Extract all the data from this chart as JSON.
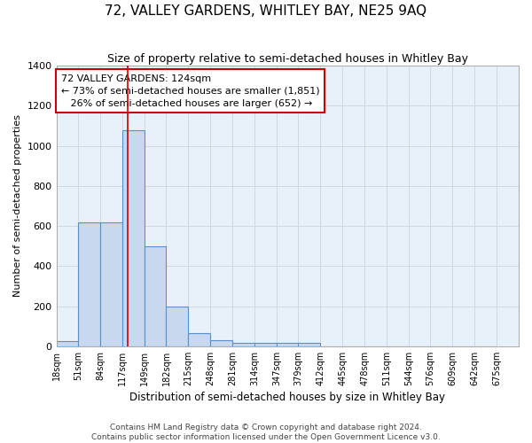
{
  "title": "72, VALLEY GARDENS, WHITLEY BAY, NE25 9AQ",
  "subtitle": "Size of property relative to semi-detached houses in Whitley Bay",
  "xlabel": "Distribution of semi-detached houses by size in Whitley Bay",
  "ylabel": "Number of semi-detached properties",
  "bar_color": "#c8d9ef",
  "bar_edge_color": "#5b8fc7",
  "background_color": "#e8f0fa",
  "grid_color": "#d0d8e8",
  "bin_labels": [
    "18sqm",
    "51sqm",
    "84sqm",
    "117sqm",
    "149sqm",
    "182sqm",
    "215sqm",
    "248sqm",
    "281sqm",
    "314sqm",
    "347sqm",
    "379sqm",
    "412sqm",
    "445sqm",
    "478sqm",
    "511sqm",
    "544sqm",
    "576sqm",
    "609sqm",
    "642sqm",
    "675sqm"
  ],
  "bin_edges": [
    18,
    51,
    84,
    117,
    149,
    182,
    215,
    248,
    281,
    314,
    347,
    379,
    412,
    445,
    478,
    511,
    544,
    576,
    609,
    642,
    675
  ],
  "bar_heights": [
    25,
    620,
    620,
    1080,
    500,
    200,
    65,
    30,
    15,
    15,
    15,
    15,
    0,
    0,
    0,
    0,
    0,
    0,
    0,
    0
  ],
  "red_line_x": 124,
  "red_line_color": "#cc0000",
  "annotation_line1": "72 VALLEY GARDENS: 124sqm",
  "annotation_line2": "← 73% of semi-detached houses are smaller (1,851)",
  "annotation_line3": "   26% of semi-detached houses are larger (652) →",
  "annotation_box_color": "#ffffff",
  "annotation_box_edge_color": "#cc0000",
  "ylim": [
    0,
    1400
  ],
  "yticks": [
    0,
    200,
    400,
    600,
    800,
    1000,
    1200,
    1400
  ],
  "footer_text": "Contains HM Land Registry data © Crown copyright and database right 2024.\nContains public sector information licensed under the Open Government Licence v3.0.",
  "title_fontsize": 11,
  "subtitle_fontsize": 9,
  "annotation_fontsize": 8,
  "footer_fontsize": 6.5,
  "ylabel_fontsize": 8,
  "xlabel_fontsize": 8.5,
  "ytick_fontsize": 8,
  "xtick_fontsize": 7
}
